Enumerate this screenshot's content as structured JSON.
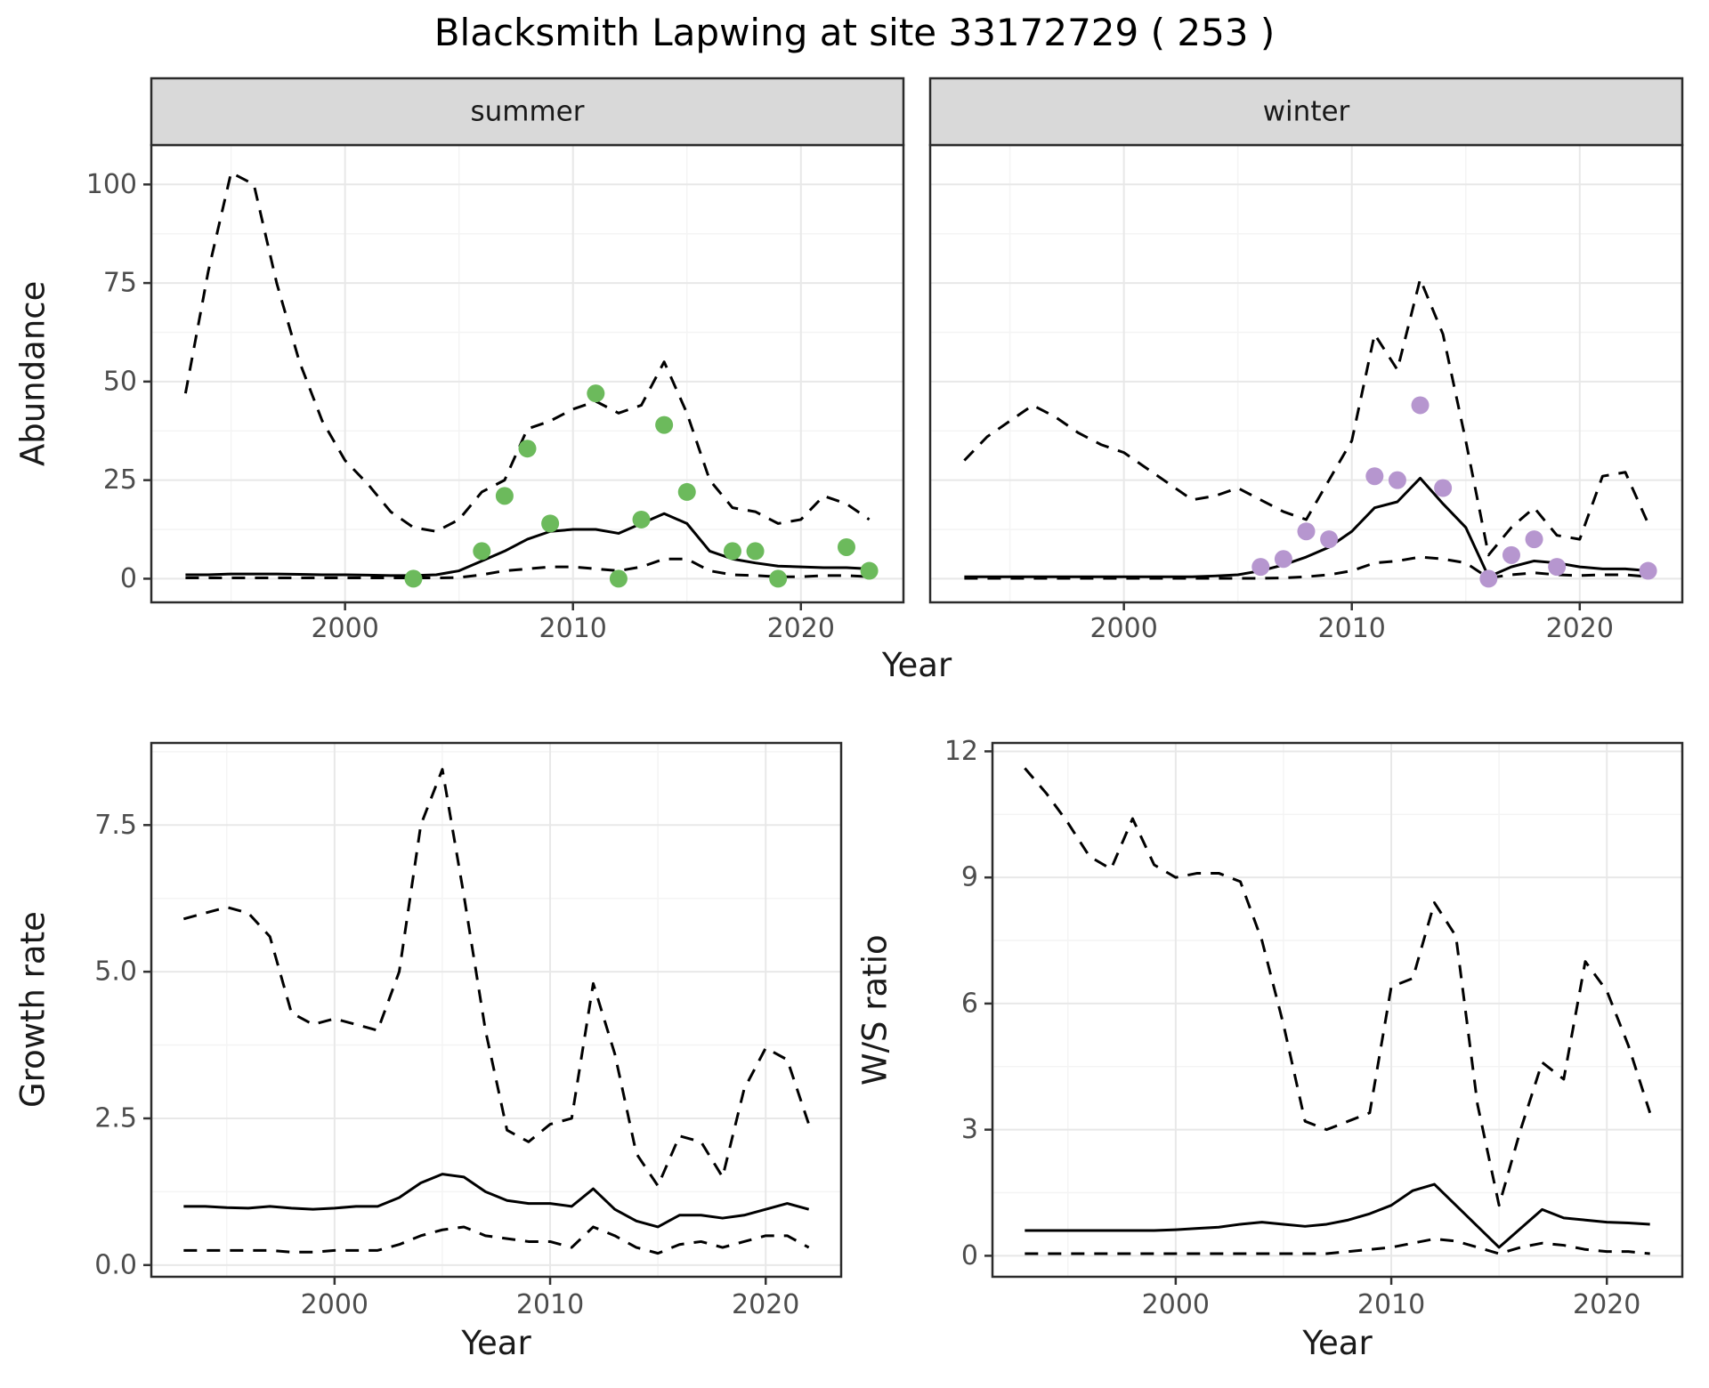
{
  "title": "Blacksmith Lapwing at site 33172729 ( 253 )",
  "colors": {
    "line": "#000000",
    "summer_points": "#6cba5c",
    "winter_points": "#b696cf",
    "strip_bg": "#d9d9d9",
    "panel_border": "#2b2b2b",
    "grid_major": "#e8e8e8",
    "grid_minor": "#f4f4f4",
    "axis_text": "#4d4d4d"
  },
  "chart_data": [
    {
      "id": "abundance-summer",
      "type": "line",
      "facet_label": "summer",
      "ylabel": "Abundance",
      "xlabel": "Year",
      "xlim": [
        1991.5,
        2024.5
      ],
      "ylim": [
        -6,
        110
      ],
      "xticks": [
        2000,
        2010,
        2020
      ],
      "xticklabels": [
        "2000",
        "2010",
        "2020"
      ],
      "yticks": [
        0,
        25,
        50,
        75,
        100
      ],
      "yticklabels": [
        "0",
        "25",
        "50",
        "75",
        "100"
      ],
      "x": [
        1993,
        1994,
        1995,
        1996,
        1997,
        1998,
        1999,
        2000,
        2001,
        2002,
        2003,
        2004,
        2005,
        2006,
        2007,
        2008,
        2009,
        2010,
        2011,
        2012,
        2013,
        2014,
        2015,
        2016,
        2017,
        2018,
        2019,
        2020,
        2021,
        2022,
        2023
      ],
      "series": [
        {
          "name": "upper-ci",
          "style": "dashed",
          "values": [
            47,
            78,
            103,
            100,
            75,
            55,
            40,
            30,
            24,
            17,
            13,
            12,
            15,
            22,
            25,
            38,
            40,
            43,
            45,
            42,
            44,
            55,
            42,
            25,
            18,
            17,
            14,
            15,
            21,
            19,
            15
          ]
        },
        {
          "name": "median",
          "style": "solid",
          "values": [
            1,
            1,
            1.2,
            1.2,
            1.2,
            1.1,
            1,
            1,
            0.9,
            0.8,
            0.8,
            1,
            2,
            4.5,
            7,
            10,
            12,
            12.5,
            12.5,
            11.5,
            14,
            16.5,
            14,
            7,
            5,
            4,
            3.2,
            3,
            2.8,
            2.8,
            2.5
          ]
        },
        {
          "name": "lower-ci",
          "style": "dashed",
          "values": [
            0.2,
            0.2,
            0.2,
            0.2,
            0.2,
            0.2,
            0.2,
            0.2,
            0.2,
            0.2,
            0.2,
            0.2,
            0.3,
            1,
            2,
            2.5,
            3,
            3,
            2.5,
            2,
            3,
            5,
            5,
            2,
            1,
            0.8,
            0.5,
            0.5,
            0.8,
            0.8,
            0.5
          ]
        }
      ],
      "points": {
        "name": "observed-summer-count",
        "color": "#6cba5c",
        "x": [
          2003,
          2006,
          2007,
          2008,
          2009,
          2011,
          2012,
          2013,
          2014,
          2015,
          2017,
          2018,
          2019,
          2022,
          2023
        ],
        "y": [
          0,
          7,
          21,
          33,
          14,
          47,
          0,
          15,
          39,
          22,
          7,
          7,
          0,
          8,
          2
        ]
      }
    },
    {
      "id": "abundance-winter",
      "type": "line",
      "facet_label": "winter",
      "ylabel": "Abundance",
      "xlabel": "Year",
      "xlim": [
        1991.5,
        2024.5
      ],
      "ylim": [
        -6,
        110
      ],
      "xticks": [
        2000,
        2010,
        2020
      ],
      "xticklabels": [
        "2000",
        "2010",
        "2020"
      ],
      "yticks": [
        0,
        25,
        50,
        75,
        100
      ],
      "yticklabels": [
        "0",
        "25",
        "50",
        "75",
        "100"
      ],
      "x": [
        1993,
        1994,
        1995,
        1996,
        1997,
        1998,
        1999,
        2000,
        2001,
        2002,
        2003,
        2004,
        2005,
        2006,
        2007,
        2008,
        2009,
        2010,
        2011,
        2012,
        2013,
        2014,
        2015,
        2016,
        2017,
        2018,
        2019,
        2020,
        2021,
        2022,
        2023
      ],
      "series": [
        {
          "name": "upper-ci",
          "style": "dashed",
          "values": [
            30,
            36,
            40,
            44,
            41,
            37,
            34,
            32,
            28,
            24,
            20,
            21,
            23,
            20,
            17,
            15,
            25,
            35,
            62,
            53,
            76,
            62,
            35,
            6,
            13,
            18,
            11,
            10,
            26,
            27,
            14
          ]
        },
        {
          "name": "median",
          "style": "solid",
          "values": [
            0.5,
            0.5,
            0.5,
            0.5,
            0.5,
            0.5,
            0.5,
            0.5,
            0.5,
            0.5,
            0.5,
            0.7,
            1,
            2,
            3.5,
            5.5,
            8,
            12,
            18,
            19.5,
            25.5,
            19,
            13,
            0.5,
            3,
            4.5,
            4,
            3,
            2.5,
            2.5,
            2
          ]
        },
        {
          "name": "lower-ci",
          "style": "dashed",
          "values": [
            0.1,
            0.1,
            0.1,
            0.1,
            0.1,
            0.1,
            0.1,
            0.1,
            0.1,
            0.1,
            0.1,
            0.1,
            0.1,
            0.1,
            0.2,
            0.5,
            1,
            2,
            4,
            4.5,
            5.5,
            5,
            4,
            0.2,
            1,
            1.5,
            1,
            0.8,
            1,
            1,
            0.5
          ]
        }
      ],
      "points": {
        "name": "observed-winter-count",
        "color": "#b696cf",
        "x": [
          2006,
          2007,
          2008,
          2009,
          2011,
          2012,
          2013,
          2014,
          2016,
          2017,
          2018,
          2019,
          2023
        ],
        "y": [
          3,
          5,
          12,
          10,
          26,
          25,
          44,
          23,
          0,
          6,
          10,
          3,
          2
        ]
      }
    },
    {
      "id": "growth-rate",
      "type": "line",
      "facet_label": "",
      "ylabel": "Growth rate",
      "xlabel": "Year",
      "xlim": [
        1991.5,
        2023.5
      ],
      "ylim": [
        -0.2,
        8.9
      ],
      "xticks": [
        2000,
        2010,
        2020
      ],
      "xticklabels": [
        "2000",
        "2010",
        "2020"
      ],
      "yticks": [
        0,
        2.5,
        5,
        7.5
      ],
      "yticklabels": [
        "0.0",
        "2.5",
        "5.0",
        "7.5"
      ],
      "x": [
        1993,
        1994,
        1995,
        1996,
        1997,
        1998,
        1999,
        2000,
        2001,
        2002,
        2003,
        2004,
        2005,
        2006,
        2007,
        2008,
        2009,
        2010,
        2011,
        2012,
        2013,
        2014,
        2015,
        2016,
        2017,
        2018,
        2019,
        2020,
        2021,
        2022
      ],
      "series": [
        {
          "name": "upper-ci",
          "style": "dashed",
          "values": [
            5.9,
            6.0,
            6.1,
            6.0,
            5.6,
            4.3,
            4.1,
            4.2,
            4.1,
            4.0,
            5.0,
            7.5,
            8.45,
            6.3,
            4.0,
            2.3,
            2.1,
            2.4,
            2.5,
            4.8,
            3.6,
            1.9,
            1.35,
            2.2,
            2.1,
            1.5,
            3.0,
            3.7,
            3.5,
            2.4
          ]
        },
        {
          "name": "median",
          "style": "solid",
          "values": [
            1.0,
            1.0,
            0.98,
            0.97,
            1.0,
            0.97,
            0.95,
            0.97,
            1.0,
            1.0,
            1.15,
            1.4,
            1.55,
            1.5,
            1.25,
            1.1,
            1.05,
            1.05,
            1.0,
            1.3,
            0.95,
            0.75,
            0.65,
            0.85,
            0.85,
            0.8,
            0.85,
            0.95,
            1.05,
            0.95
          ]
        },
        {
          "name": "lower-ci",
          "style": "dashed",
          "values": [
            0.25,
            0.25,
            0.25,
            0.25,
            0.25,
            0.22,
            0.22,
            0.25,
            0.25,
            0.25,
            0.35,
            0.5,
            0.6,
            0.65,
            0.5,
            0.45,
            0.4,
            0.4,
            0.3,
            0.65,
            0.5,
            0.3,
            0.2,
            0.35,
            0.4,
            0.3,
            0.4,
            0.5,
            0.5,
            0.3
          ]
        }
      ]
    },
    {
      "id": "ws-ratio",
      "type": "line",
      "facet_label": "",
      "ylabel": "W/S ratio",
      "xlabel": "Year",
      "xlim": [
        1991.5,
        2023.5
      ],
      "ylim": [
        -0.5,
        12.2
      ],
      "xticks": [
        2000,
        2010,
        2020
      ],
      "xticklabels": [
        "2000",
        "2010",
        "2020"
      ],
      "yticks": [
        0,
        3,
        6,
        9,
        12
      ],
      "yticklabels": [
        "0",
        "3",
        "6",
        "9",
        "12"
      ],
      "x": [
        1993,
        1994,
        1995,
        1996,
        1997,
        1998,
        1999,
        2000,
        2001,
        2002,
        2003,
        2004,
        2005,
        2006,
        2007,
        2008,
        2009,
        2010,
        2011,
        2012,
        2013,
        2014,
        2015,
        2016,
        2017,
        2018,
        2019,
        2020,
        2021,
        2022
      ],
      "series": [
        {
          "name": "upper-ci",
          "style": "dashed",
          "values": [
            11.6,
            11.0,
            10.3,
            9.5,
            9.2,
            10.4,
            9.3,
            9.0,
            9.1,
            9.1,
            8.9,
            7.5,
            5.5,
            3.2,
            3.0,
            3.2,
            3.4,
            6.4,
            6.6,
            8.4,
            7.6,
            3.6,
            1.2,
            3.0,
            4.6,
            4.2,
            7.0,
            6.3,
            5.0,
            3.4
          ]
        },
        {
          "name": "median",
          "style": "solid",
          "values": [
            0.6,
            0.6,
            0.6,
            0.6,
            0.6,
            0.6,
            0.6,
            0.62,
            0.65,
            0.68,
            0.75,
            0.8,
            0.75,
            0.7,
            0.75,
            0.85,
            1.0,
            1.2,
            1.55,
            1.7,
            1.2,
            0.7,
            0.2,
            0.65,
            1.1,
            0.9,
            0.85,
            0.8,
            0.78,
            0.75
          ]
        },
        {
          "name": "lower-ci",
          "style": "dashed",
          "values": [
            0.05,
            0.05,
            0.05,
            0.05,
            0.05,
            0.05,
            0.05,
            0.05,
            0.05,
            0.05,
            0.05,
            0.05,
            0.05,
            0.05,
            0.05,
            0.1,
            0.15,
            0.2,
            0.3,
            0.4,
            0.35,
            0.2,
            0.05,
            0.2,
            0.3,
            0.25,
            0.15,
            0.1,
            0.1,
            0.05
          ]
        }
      ]
    }
  ]
}
